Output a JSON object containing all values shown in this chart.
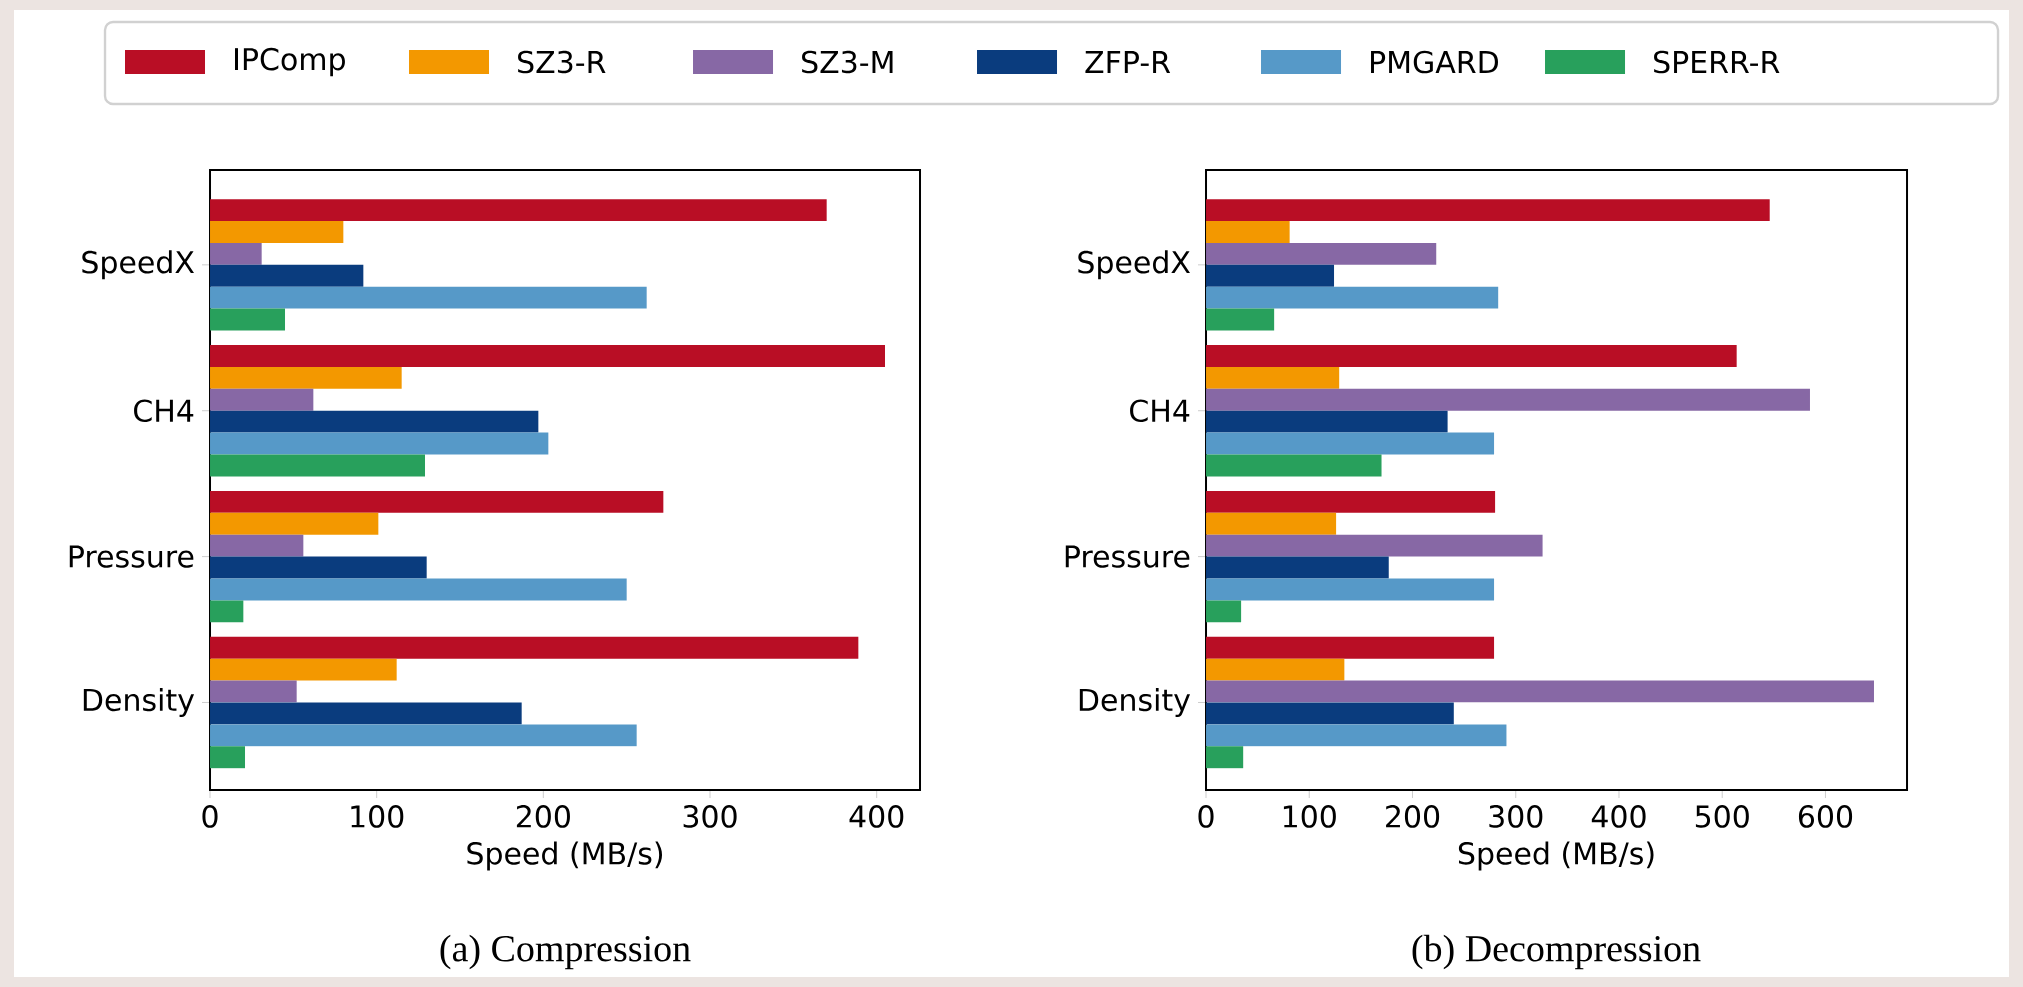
{
  "chart_data": [
    {
      "type": "bar",
      "orientation": "horizontal",
      "title": "(a) Compression",
      "xlabel": "Speed (MB/s)",
      "categories": [
        "SpeedX",
        "CH4",
        "Pressure",
        "Density"
      ],
      "xlim": [
        0,
        426
      ],
      "xticks": [
        0,
        100,
        200,
        300,
        400
      ],
      "legend": "top",
      "series": [
        {
          "name": "IPComp",
          "color": "#b90e25",
          "values": [
            370,
            405,
            272,
            389
          ]
        },
        {
          "name": "SZ3-R",
          "color": "#f39800",
          "values": [
            80,
            115,
            101,
            112
          ]
        },
        {
          "name": "SZ3-M",
          "color": "#8768a5",
          "values": [
            31,
            62,
            56,
            52
          ]
        },
        {
          "name": "ZFP-R",
          "color": "#0a3c7e",
          "values": [
            92,
            197,
            130,
            187
          ]
        },
        {
          "name": "PMGARD",
          "color": "#5699c8",
          "values": [
            262,
            203,
            250,
            256
          ]
        },
        {
          "name": "SPERR-R",
          "color": "#28a05c",
          "values": [
            45,
            129,
            20,
            21
          ]
        }
      ]
    },
    {
      "type": "bar",
      "orientation": "horizontal",
      "title": "(b) Decompression",
      "xlabel": "Speed (MB/s)",
      "categories": [
        "SpeedX",
        "CH4",
        "Pressure",
        "Density"
      ],
      "xlim": [
        0,
        679
      ],
      "xticks": [
        0,
        100,
        200,
        300,
        400,
        500,
        600
      ],
      "series": [
        {
          "color": "#b90e25",
          "values": [
            546,
            514,
            280,
            279
          ]
        },
        {
          "color": "#f39800",
          "values": [
            81,
            129,
            126,
            134
          ]
        },
        {
          "color": "#8768a5",
          "values": [
            223,
            585,
            326,
            647
          ]
        },
        {
          "color": "#0a3c7e",
          "values": [
            124,
            234,
            177,
            240
          ]
        },
        {
          "color": "#5699c8",
          "values": [
            283,
            279,
            279,
            291
          ]
        },
        {
          "color": "#28a05c",
          "values": [
            66,
            170,
            34,
            36
          ]
        }
      ]
    }
  ]
}
